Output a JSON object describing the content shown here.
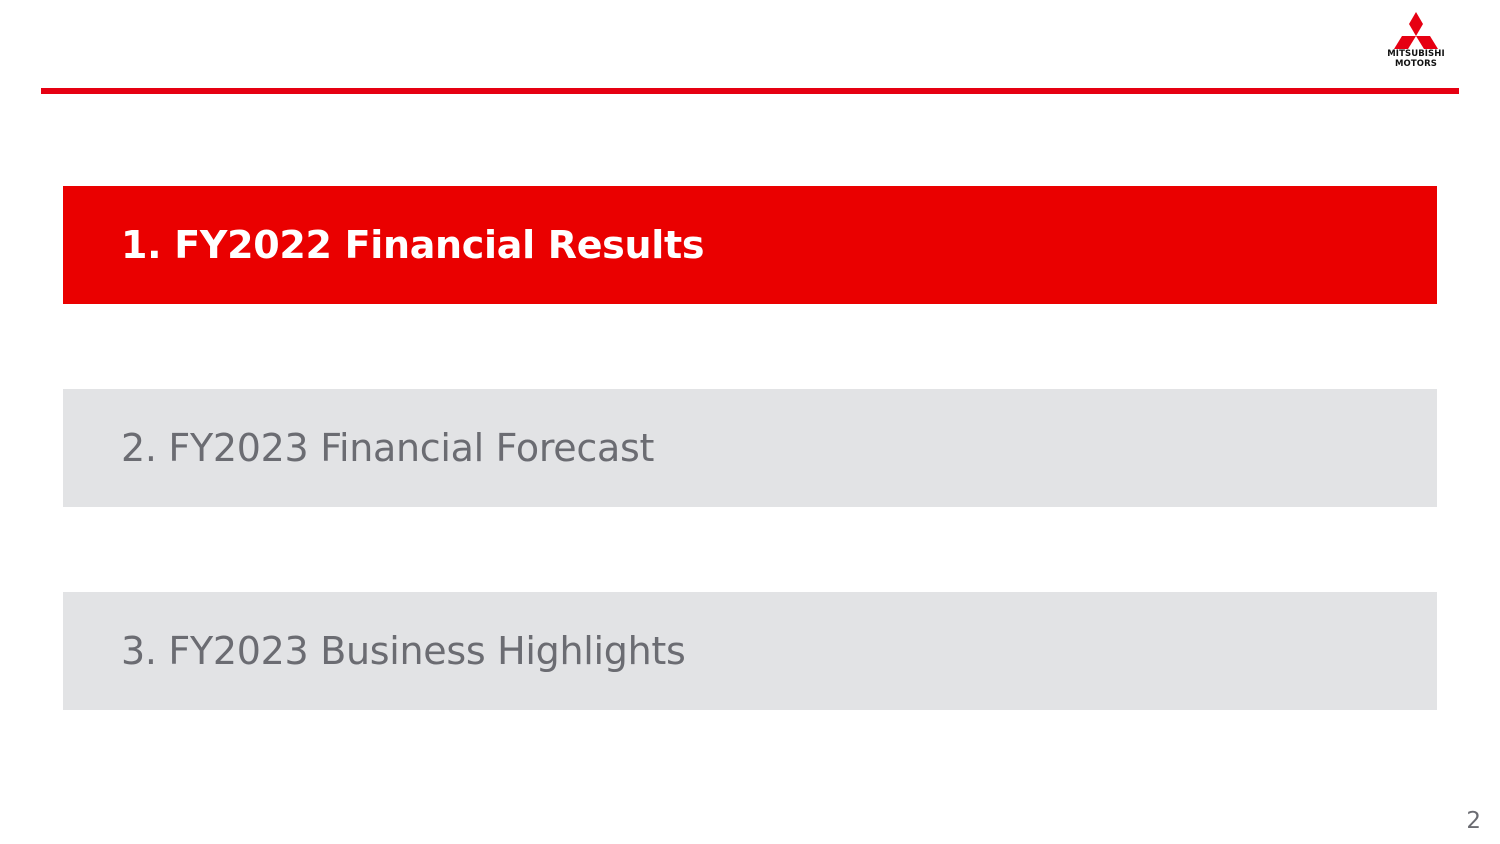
{
  "brand": {
    "logo_line1": "MITSUBISHI",
    "logo_line2": "MOTORS",
    "accent_color": "#e60012"
  },
  "agenda": {
    "items": [
      {
        "label": "1. FY2022 Financial Results",
        "state": "active"
      },
      {
        "label": "2. FY2023 Financial Forecast",
        "state": "inactive"
      },
      {
        "label": "3. FY2023 Business Highlights",
        "state": "inactive"
      }
    ]
  },
  "footer": {
    "page_number": "2"
  }
}
